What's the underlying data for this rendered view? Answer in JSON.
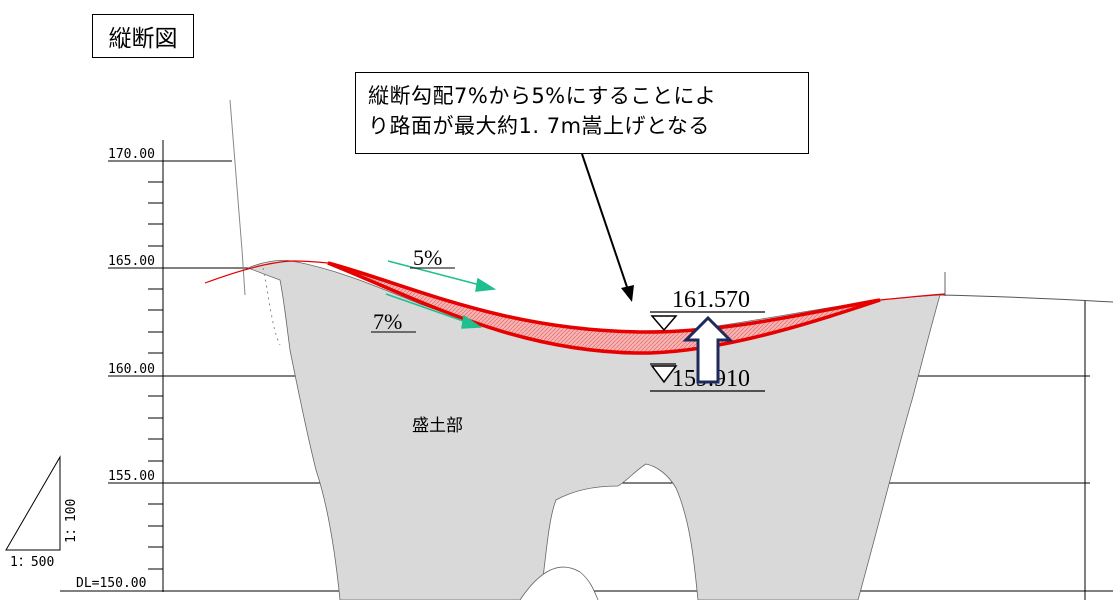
{
  "title": "縦断図",
  "callout": {
    "line1": "縦断勾配7%から5%にすることによ",
    "line2": "り路面が最大約1. 7m嵩上げとなる"
  },
  "elevation_labels": [
    "170.00",
    "165.00",
    "160.00",
    "155.00",
    "DL=150.00"
  ],
  "grade_labels": {
    "new": "5%",
    "old": "7%"
  },
  "elevation_marks": {
    "upper": "161.570",
    "lower": "159.910"
  },
  "section_label": "盛土部",
  "scale": {
    "vertical": "1：100",
    "horizontal": "1：500"
  },
  "colors": {
    "fill_area": "#d9d9d9",
    "road_line": "#e60000",
    "hatch_fill": "#f2a7a7",
    "grade_arrow": "#1fbf8f",
    "raise_arrow": "#1f2a5c"
  }
}
